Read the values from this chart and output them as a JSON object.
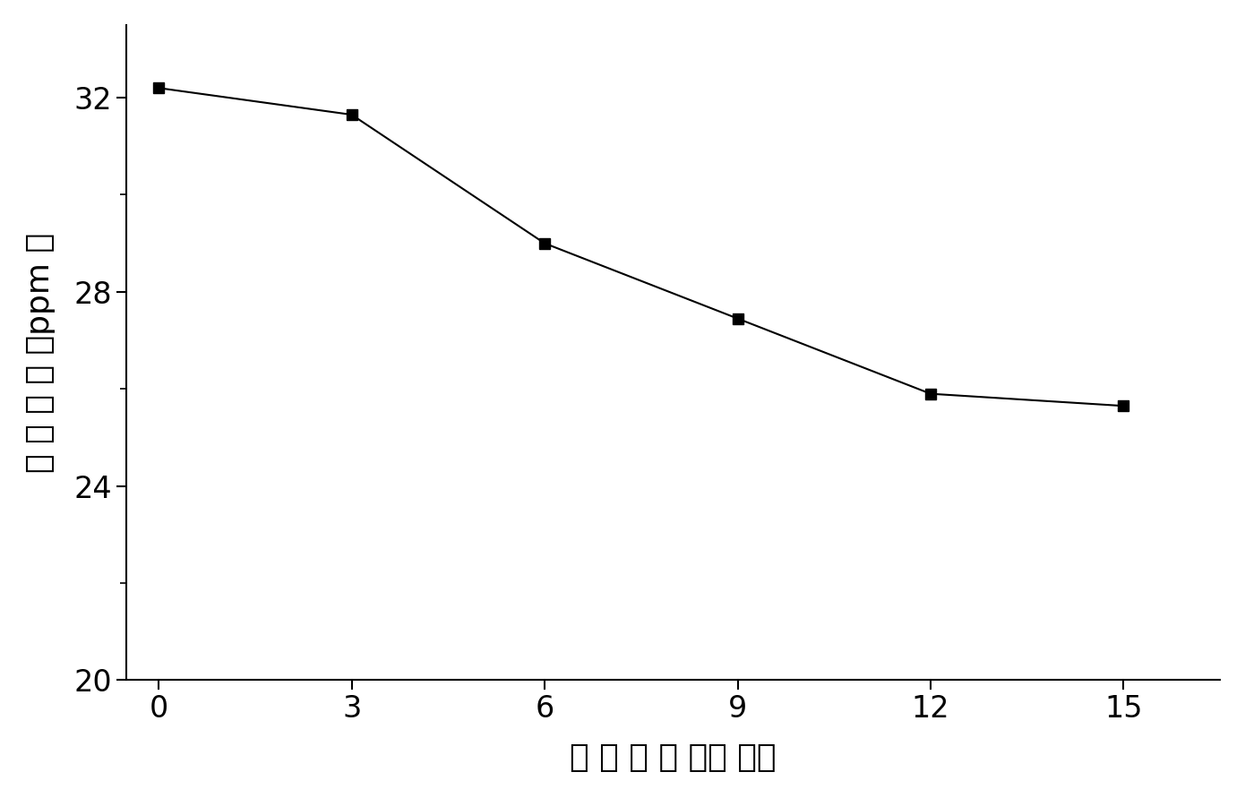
{
  "x": [
    0,
    3,
    6,
    9,
    12,
    15
  ],
  "y": [
    32.2,
    31.65,
    29.0,
    27.45,
    25.9,
    25.65
  ],
  "line_color": "#000000",
  "marker": "s",
  "marker_color": "#000000",
  "marker_size": 9,
  "linewidth": 1.5,
  "xlabel": "光照时间（小时）",
  "ylabel": "总有机砖（ppm）",
  "xlim": [
    -0.5,
    16.5
  ],
  "ylim": [
    20,
    33.5
  ],
  "xticks": [
    0,
    3,
    6,
    9,
    12,
    15
  ],
  "yticks": [
    20,
    24,
    28,
    32
  ],
  "xlabel_fontsize": 26,
  "ylabel_fontsize": 26,
  "tick_fontsize": 24,
  "background_color": "#ffffff",
  "spine_color": "#000000"
}
